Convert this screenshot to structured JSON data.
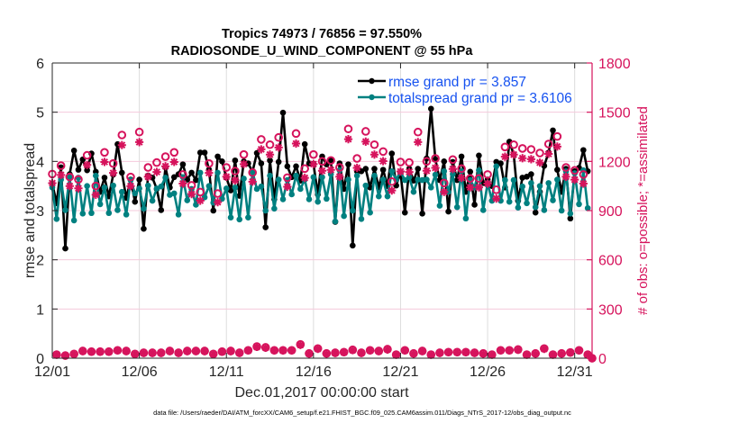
{
  "chart_data": {
    "type": "line",
    "title": [
      "Tropics 74973 / 76856 = 97.550%",
      "RADIOSONDE_U_WIND_COMPONENT @ 55 hPa"
    ],
    "xlabel": "Dec.01,2017 00:00:00 start",
    "ylabel_left": "rmse and totalspread",
    "ylabel_right": "# of obs: o=possible; *=assimilated",
    "x_units": "days since Dec.01,2017 00:00:00",
    "x_range": [
      0,
      31
    ],
    "x_ticks": [
      0,
      5,
      10,
      15,
      20,
      25,
      30
    ],
    "x_tick_labels": [
      "12/01",
      "12/06",
      "12/11",
      "12/16",
      "12/21",
      "12/26",
      "12/31"
    ],
    "y_left_range": [
      0,
      6
    ],
    "y_left_ticks": [
      0,
      1,
      2,
      3,
      4,
      5,
      6
    ],
    "y_left_tick_labels": [
      "0",
      "1",
      "2",
      "3",
      "4",
      "5",
      "6"
    ],
    "y_right_range": [
      0,
      1800
    ],
    "y_right_ticks": [
      0,
      300,
      600,
      900,
      1200,
      1500,
      1800
    ],
    "y_right_tick_labels": [
      "0",
      "300",
      "600",
      "900",
      "1200",
      "1500",
      "1800"
    ],
    "grid": true,
    "legend_position": "top-right",
    "x_start": 0,
    "x_step": 0.25,
    "legend": [
      {
        "label": "rmse grand pr = 3.857",
        "color": "#000000"
      },
      {
        "label": "totalspread grand pr = 3.6106",
        "color": "#008080"
      }
    ],
    "series": [
      {
        "name": "rmse",
        "axis": "left",
        "color": "#000000",
        "marker": "filled-circle",
        "values": [
          3.55,
          3.15,
          3.88,
          2.23,
          3.74,
          4.22,
          3.83,
          4.04,
          3.82,
          4.16,
          3.79,
          3.38,
          3.67,
          3.29,
          3.73,
          4.35,
          3.77,
          3.26,
          3.63,
          3.18,
          3.63,
          2.63,
          3.71,
          3.67,
          3.44,
          3.01,
          3.88,
          3.47,
          3.68,
          3.74,
          3.94,
          3.63,
          3.77,
          3.62,
          4.18,
          4.18,
          3.83,
          3.0,
          4.1,
          4.0,
          3.67,
          3.41,
          4.02,
          3.3,
          4.0,
          3.96,
          3.79,
          4.17,
          3.96,
          2.66,
          4.02,
          3.23,
          3.99,
          4.99,
          3.9,
          3.68,
          3.9,
          3.61,
          4.35,
          3.96,
          3.95,
          3.33,
          4.1,
          3.94,
          4.02,
          2.77,
          3.96,
          3.44,
          3.94,
          2.29,
          3.8,
          3.8,
          3.85,
          3.47,
          3.85,
          3.47,
          3.83,
          3.5,
          4.16,
          3.51,
          3.77,
          2.96,
          3.85,
          3.61,
          3.85,
          2.94,
          4.06,
          5.07,
          4.04,
          3.62,
          4.0,
          2.98,
          3.99,
          3.62,
          4.1,
          3.38,
          3.79,
          3.12,
          4.12,
          3.56,
          3.63,
          3.5,
          3.99,
          3.96,
          3.47,
          4.4,
          4.14,
          3.2,
          3.67,
          3.69,
          3.74,
          2.96,
          3.38,
          3.91,
          4.18,
          4.63,
          3.83,
          3.38,
          3.85,
          2.84,
          3.8,
          3.87,
          4.23,
          3.8
        ]
      },
      {
        "name": "totalspread",
        "axis": "left",
        "color": "#008080",
        "marker": "filled-circle",
        "values": [
          3.47,
          2.83,
          3.63,
          3.01,
          3.68,
          2.8,
          3.67,
          2.94,
          3.5,
          2.95,
          3.71,
          3.13,
          3.47,
          2.95,
          3.51,
          3.01,
          3.38,
          2.92,
          3.62,
          3.35,
          3.45,
          3.04,
          3.51,
          3.2,
          3.45,
          3.49,
          3.67,
          3.32,
          3.35,
          2.92,
          3.68,
          3.21,
          3.44,
          3.12,
          3.77,
          3.27,
          3.5,
          3.16,
          3.77,
          3.24,
          3.45,
          2.86,
          3.47,
          2.82,
          3.65,
          2.86,
          3.79,
          3.44,
          3.49,
          3.0,
          3.71,
          3.04,
          3.63,
          3.23,
          3.62,
          3.33,
          3.71,
          3.44,
          3.63,
          3.23,
          3.68,
          3.18,
          3.68,
          3.24,
          3.74,
          2.78,
          3.82,
          2.89,
          3.63,
          3.0,
          3.71,
          2.83,
          3.51,
          2.96,
          3.71,
          3.29,
          3.63,
          3.29,
          3.8,
          3.63,
          3.79,
          3.62,
          3.68,
          3.38,
          3.63,
          3.62,
          3.63,
          3.47,
          3.73,
          3.1,
          3.8,
          3.38,
          3.74,
          3.07,
          3.8,
          2.84,
          3.62,
          3.47,
          3.82,
          3.01,
          3.56,
          3.2,
          3.9,
          3.2,
          3.62,
          3.18,
          3.62,
          3.06,
          3.49,
          3.15,
          3.56,
          3.07,
          3.5,
          3.01,
          3.56,
          3.21,
          3.63,
          3.0,
          3.8,
          2.94,
          3.76,
          3.13,
          3.82,
          3.05
        ]
      },
      {
        "name": "obs possible",
        "axis": "right",
        "color": "#d6135c",
        "marker": "o",
        "values": [
          1123,
          22,
          1174,
          16,
          1105,
          26,
          1090,
          44,
          1237,
          40,
          1050,
          40,
          1255,
          40,
          1187,
          48,
          1361,
          44,
          1105,
          26,
          1379,
          33,
          1163,
          33,
          1193,
          33,
          1229,
          44,
          1255,
          33,
          1120,
          44,
          1054,
          44,
          1013,
          44,
          1187,
          26,
          1004,
          40,
          1163,
          44,
          1141,
          33,
          1242,
          48,
          1132,
          71,
          1334,
          66,
          1302,
          48,
          1346,
          48,
          1101,
          48,
          1370,
          84,
          1156,
          29,
          1242,
          59,
          1200,
          29,
          1206,
          33,
          1163,
          37,
          1398,
          51,
          1218,
          33,
          1383,
          48,
          1302,
          44,
          1260,
          55,
          1077,
          22,
          1196,
          48,
          1193,
          29,
          1379,
          44,
          1200,
          22,
          1218,
          33,
          1068,
          37,
          1211,
          37,
          1156,
          37,
          1096,
          33,
          1096,
          29,
          1120,
          22,
          1027,
          48,
          1288,
          48,
          1302,
          53,
          1279,
          22,
          1273,
          29,
          1251,
          59,
          1306,
          22,
          1352,
          29,
          1163,
          35,
          1145,
          48,
          1120,
          22,
          0
        ]
      },
      {
        "name": "obs assimilated",
        "axis": "right",
        "color": "#d6135c",
        "marker": "*",
        "values": [
          1095,
          21,
          1145,
          16,
          1077,
          25,
          1063,
          43,
          1206,
          39,
          1024,
          39,
          1224,
          39,
          1157,
          47,
          1327,
          43,
          1077,
          25,
          1345,
          32,
          1134,
          32,
          1163,
          32,
          1198,
          43,
          1224,
          32,
          1092,
          43,
          1028,
          43,
          988,
          43,
          1157,
          25,
          979,
          39,
          1134,
          43,
          1112,
          32,
          1211,
          47,
          1104,
          69,
          1301,
          64,
          1269,
          47,
          1312,
          47,
          1073,
          47,
          1336,
          81,
          1127,
          28,
          1211,
          57,
          1170,
          28,
          1176,
          32,
          1134,
          36,
          1363,
          49,
          1188,
          32,
          1348,
          47,
          1269,
          43,
          1229,
          53,
          1050,
          21,
          1166,
          47,
          1163,
          28,
          1345,
          43,
          1170,
          21,
          1188,
          32,
          1041,
          36,
          1181,
          36,
          1127,
          36,
          1069,
          32,
          1069,
          28,
          1092,
          21,
          1001,
          47,
          1256,
          47,
          1269,
          51,
          1247,
          21,
          1241,
          28,
          1220,
          57,
          1273,
          21,
          1318,
          28,
          1134,
          34,
          1116,
          47,
          1092,
          21,
          0
        ]
      }
    ]
  },
  "footer": {
    "data_file": "data file: /Users/raeder/DAI/ATM_forcXX/CAM6_setup/f.e21.FHIST_BGC.f09_025.CAM6assim.011/Diags_NTrS_2017-12/obs_diag_output.nc"
  }
}
